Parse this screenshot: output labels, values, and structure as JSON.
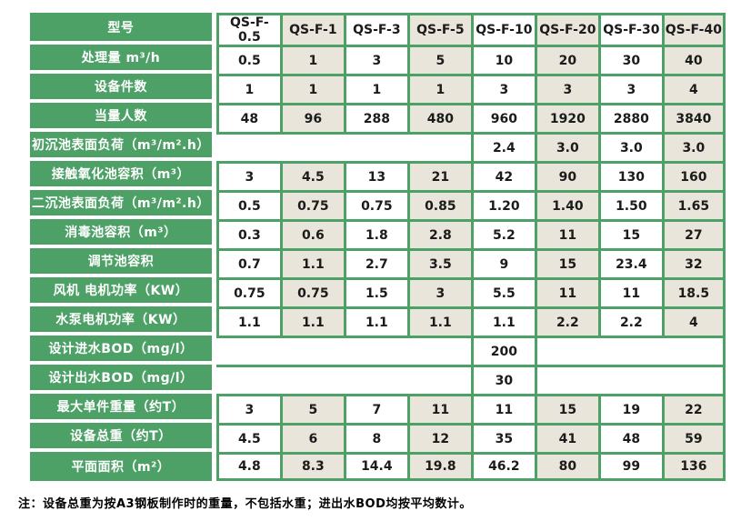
{
  "colors": {
    "green": "#4DA066",
    "beige": "#E9E5DA",
    "label_text": "#FFFFFF",
    "value_text": "#1B1B1B",
    "page_bg": "#FFFFFF"
  },
  "table": {
    "header_label": "型号",
    "columns": [
      "QS-F-0.5",
      "QS-F-1",
      "QS-F-3",
      "QS-F-5",
      "QS-F-10",
      "QS-F-20",
      "QS-F-30",
      "QS-F-40"
    ],
    "rows": [
      {
        "label": "处理量 m³/h",
        "cells": [
          "0.5",
          "1",
          "3",
          "5",
          "10",
          "20",
          "30",
          "40"
        ]
      },
      {
        "label": "设备件数",
        "cells": [
          "1",
          "1",
          "1",
          "1",
          "3",
          "3",
          "3",
          "4"
        ]
      },
      {
        "label": "当量人数",
        "cells": [
          "48",
          "96",
          "288",
          "480",
          "960",
          "1920",
          "2880",
          "3840"
        ]
      },
      {
        "label": "初沉池表面负荷（m³/m².h）",
        "cells": [
          {
            "span": 4,
            "v": ""
          },
          "2.4",
          "3.0",
          "3.0",
          "3.0"
        ]
      },
      {
        "label": "接触氧化池容积（m³）",
        "cells": [
          "3",
          "4.5",
          "13",
          "21",
          "42",
          "90",
          "130",
          "160"
        ]
      },
      {
        "label": "二沉池表面负荷（m³/m².h）",
        "cells": [
          "0.5",
          "0.75",
          "0.75",
          "0.85",
          "1.20",
          "1.40",
          "1.50",
          "1.65"
        ]
      },
      {
        "label": "消毒池容积（m³）",
        "cells": [
          "0.3",
          "0.6",
          "1.8",
          "2.8",
          "5.2",
          "11",
          "15",
          "27"
        ]
      },
      {
        "label": "调节池容积",
        "cells": [
          "0.7",
          "1.1",
          "2.7",
          "3.5",
          "9",
          "15",
          "23.4",
          "32"
        ]
      },
      {
        "label": "风机 电机功率（KW）",
        "cells": [
          "0.75",
          "0.75",
          "1.5",
          "3",
          "5.5",
          "11",
          "11",
          "18.5"
        ]
      },
      {
        "label": "水泵电机功率（KW）",
        "cells": [
          "1.1",
          "1.1",
          "1.1",
          "1.1",
          "1.1",
          "2.2",
          "2.2",
          "4"
        ]
      },
      {
        "label": "设计进水BOD（mg/l）",
        "cells": [
          {
            "span": 4,
            "v": ""
          },
          "200",
          {
            "span": 3,
            "v": ""
          }
        ]
      },
      {
        "label": "设计出水BOD（mg/l）",
        "cells": [
          {
            "span": 4,
            "v": ""
          },
          "30",
          {
            "span": 3,
            "v": ""
          }
        ]
      },
      {
        "label": "最大单件重量（约T）",
        "cells": [
          "3",
          "5",
          "7",
          "11",
          "11",
          "15",
          "19",
          "22"
        ]
      },
      {
        "label": "设备总重（约T）",
        "cells": [
          "4.5",
          "6",
          "8",
          "12",
          "35",
          "41",
          "48",
          "59"
        ]
      },
      {
        "label": "平面面积（m²）",
        "cells": [
          "4.8",
          "8.3",
          "14.4",
          "19.8",
          "46.2",
          "80",
          "99",
          "136"
        ]
      }
    ]
  },
  "note": "注：设备总重为按A3钢板制作时的重量，不包括水重；进出水BOD均按平均数计。"
}
